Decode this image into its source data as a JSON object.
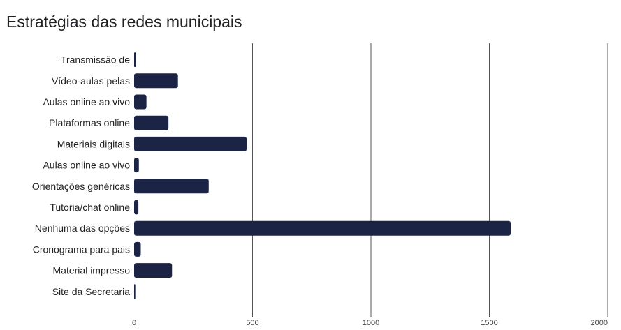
{
  "chart_data": {
    "type": "bar",
    "orientation": "horizontal",
    "title": "Estratégias das redes municipais",
    "categories": [
      "Transmissão de",
      "Vídeo-aulas pelas",
      "Aulas online ao vivo",
      "Plataformas online",
      "Materiais digitais",
      "Aulas online ao vivo",
      "Orientações genéricas",
      "Tutoria/chat online",
      "Nenhuma das opções",
      "Cronograma para pais",
      "Material impresso",
      "Site da Secretaria"
    ],
    "values": [
      8,
      185,
      52,
      145,
      475,
      20,
      315,
      18,
      1590,
      28,
      160,
      5
    ],
    "xlim": [
      0,
      2000
    ],
    "xticks": [
      0,
      500,
      1000,
      1500,
      2000
    ],
    "xlabel": "",
    "ylabel": "",
    "grid": true,
    "bar_color": "#1b2444",
    "grid_color": "#555555"
  }
}
